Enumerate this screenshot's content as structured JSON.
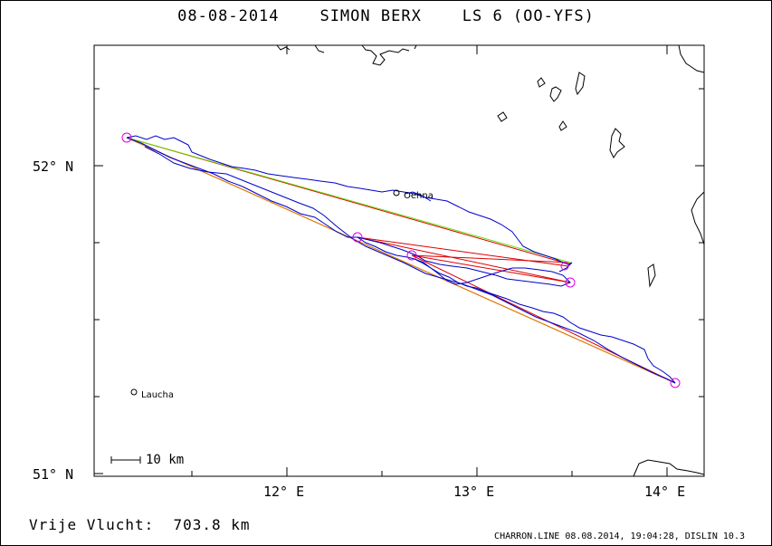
{
  "title": "08-08-2014    SIMON BERX    LS 6 (OO-YFS)",
  "axes": {
    "lat_labels": [
      "52° N",
      "51° N"
    ],
    "lon_labels": [
      "12° E",
      "13° E",
      "14° E"
    ]
  },
  "places": [
    {
      "name": "Oehna",
      "lon": 12.58,
      "lat": 51.9
    },
    {
      "name": "Laucha",
      "lon": 11.16,
      "lat": 51.27
    }
  ],
  "scale_label": "10 km",
  "distance_text": "Vrije Vlucht:  703.8 km",
  "footer_text": "CHARRON.LINE 08.08.2014, 19:04:28, DISLIN 10.3",
  "colors": {
    "track": "#0000cc",
    "task_line": "#dd0000",
    "free_leg": "#66dd00",
    "closing_leg": "#dd8800",
    "turnpoint": "#dd00dd",
    "coast": "#000000"
  },
  "chart_data": {
    "type": "map",
    "lon_range": [
      11.05,
      14.2
    ],
    "lat_range": [
      51.0,
      52.38
    ],
    "turnpoints": [
      {
        "lon": 11.17,
        "lat": 52.09
      },
      {
        "lon": 12.37,
        "lat": 51.76
      },
      {
        "lon": 12.65,
        "lat": 51.71
      },
      {
        "lon": 13.48,
        "lat": 51.63
      },
      {
        "lon": 14.05,
        "lat": 51.3
      }
    ]
  }
}
